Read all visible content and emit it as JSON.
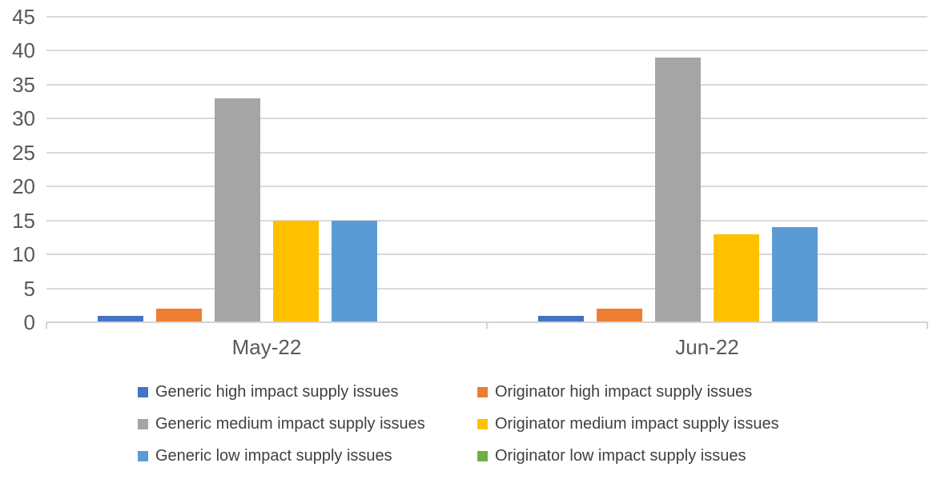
{
  "chart_data": {
    "type": "bar",
    "categories": [
      "May-22",
      "Jun-22"
    ],
    "series": [
      {
        "name": "Generic high impact supply issues",
        "color": "#4472C4",
        "values": [
          1,
          1
        ]
      },
      {
        "name": "Originator high impact supply issues",
        "color": "#ED7D31",
        "values": [
          2,
          2
        ]
      },
      {
        "name": "Generic medium impact supply issues",
        "color": "#A5A5A5",
        "values": [
          33,
          39
        ]
      },
      {
        "name": "Originator medium impact supply issues",
        "color": "#FFC000",
        "values": [
          15,
          13
        ]
      },
      {
        "name": "Generic low impact supply issues",
        "color": "#5B9BD5",
        "values": [
          15,
          14
        ]
      },
      {
        "name": "Originator low impact supply issues",
        "color": "#70AD47",
        "values": [
          0,
          0
        ]
      }
    ],
    "title": "",
    "xlabel": "",
    "ylabel": "",
    "ylim": [
      0,
      45
    ],
    "ytick_step": 5,
    "yticks": [
      0,
      5,
      10,
      15,
      20,
      25,
      30,
      35,
      40,
      45
    ],
    "grid": true,
    "legend_position": "bottom"
  },
  "colors": {
    "axis_text": "#595959",
    "legend_text": "#404040",
    "gridline": "#D9D9D9",
    "axis_line": "#D3D3D3"
  }
}
